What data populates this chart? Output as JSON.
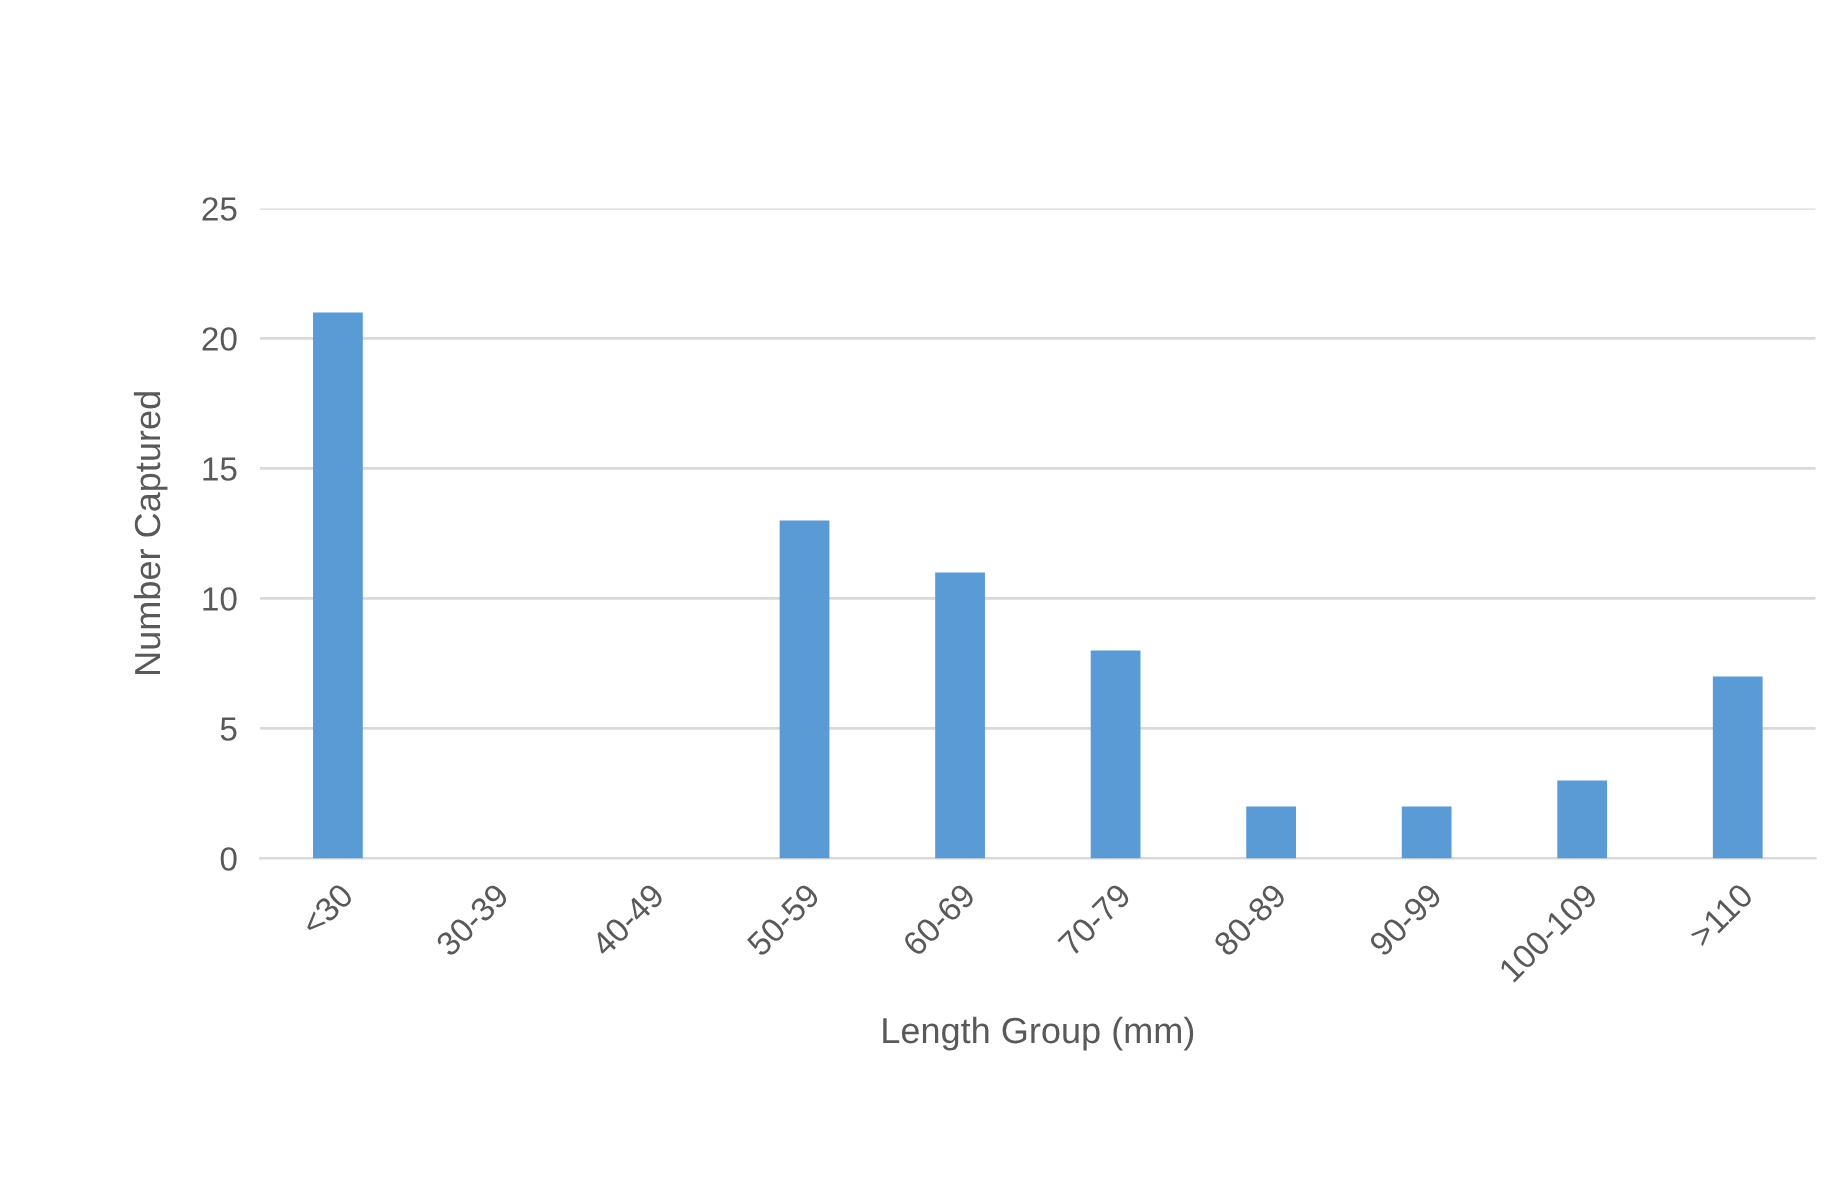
{
  "chart_data": {
    "type": "bar",
    "xlabel": "Length Group (mm)",
    "ylabel": "Number Captured",
    "categories": [
      "<30",
      "30-39",
      "40-49",
      "50-59",
      "60-69",
      "70-79",
      "80-89",
      "90-99",
      "100-109",
      ">110"
    ],
    "values": [
      21,
      0,
      0,
      13,
      11,
      8,
      2,
      2,
      3,
      7
    ],
    "color": "#5b9bd5",
    "ylim": [
      0,
      25
    ],
    "yticks": [
      0,
      5,
      10,
      15,
      20,
      25
    ],
    "grid": "y"
  }
}
